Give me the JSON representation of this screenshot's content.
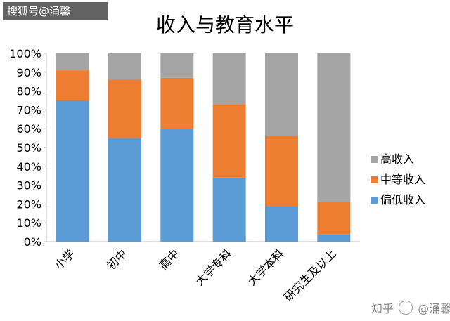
{
  "watermark_top": "搜狐号@涌馨",
  "watermark_bottom": {
    "site": "知乎",
    "handle": "@涌馨"
  },
  "chart_data": {
    "type": "bar",
    "stacked": true,
    "title": "收入与教育水平",
    "categories": [
      "小学",
      "初中",
      "高中",
      "大学专科",
      "大学本科",
      "研究生及以上"
    ],
    "series": [
      {
        "name": "偏低收入",
        "color": "#5B9BD5",
        "values": [
          75,
          55,
          60,
          34,
          19,
          4
        ]
      },
      {
        "name": "中等收入",
        "color": "#ED7D31",
        "values": [
          16,
          31,
          27,
          39,
          37,
          17
        ]
      },
      {
        "name": "高收入",
        "color": "#A5A5A5",
        "values": [
          9,
          14,
          13,
          27,
          44,
          79
        ]
      }
    ],
    "ylim": [
      0,
      100
    ],
    "yticks": [
      "0%",
      "10%",
      "20%",
      "30%",
      "40%",
      "50%",
      "60%",
      "70%",
      "80%",
      "90%",
      "100%"
    ],
    "grid": false,
    "legend_position": "right"
  }
}
